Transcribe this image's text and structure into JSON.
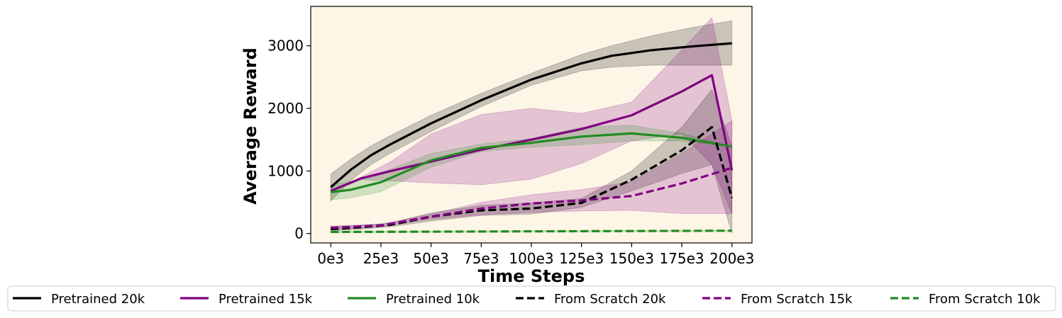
{
  "chart_data": {
    "type": "line",
    "title": "",
    "xlabel": "Time Steps",
    "ylabel": "Average Reward",
    "xlim": [
      -10000,
      210000
    ],
    "ylim": [
      -150,
      3630
    ],
    "x_ticks": [
      0,
      25000,
      50000,
      75000,
      100000,
      125000,
      150000,
      175000,
      200000
    ],
    "x_tick_labels": [
      "0e3",
      "25e3",
      "50e3",
      "75e3",
      "100e3",
      "125e3",
      "150e3",
      "175e3",
      "200e3"
    ],
    "y_ticks": [
      0,
      1000,
      2000,
      3000
    ],
    "y_tick_labels": [
      "0",
      "1000",
      "2000",
      "3000"
    ],
    "grid": false,
    "plot_background": "#fdf5e6",
    "legend_position": "bottom",
    "series": [
      {
        "name": "Pretrained 20k",
        "color": "#000000",
        "style": "solid",
        "x": [
          0,
          10000,
          20000,
          30000,
          50000,
          75000,
          100000,
          125000,
          140000,
          160000,
          180000,
          200000
        ],
        "y": [
          740,
          1020,
          1250,
          1430,
          1760,
          2130,
          2460,
          2720,
          2840,
          2930,
          2990,
          3040
        ],
        "lower": [
          520,
          850,
          1100,
          1290,
          1630,
          2030,
          2370,
          2600,
          2660,
          2690,
          2690,
          2690
        ],
        "upper": [
          950,
          1190,
          1400,
          1570,
          1890,
          2240,
          2560,
          2860,
          3000,
          3160,
          3290,
          3400
        ]
      },
      {
        "name": "Pretrained 15k",
        "color": "#800080",
        "style": "solid",
        "x": [
          0,
          15000,
          30000,
          50000,
          75000,
          100000,
          125000,
          150000,
          175000,
          190000,
          200000
        ],
        "y": [
          680,
          880,
          1000,
          1150,
          1340,
          1500,
          1670,
          1890,
          2270,
          2530,
          1010
        ],
        "lower": [
          680,
          860,
          840,
          810,
          780,
          870,
          1120,
          1480,
          1600,
          1100,
          320
        ],
        "upper": [
          680,
          900,
          1150,
          1590,
          1900,
          2000,
          1920,
          2100,
          2930,
          3450,
          1800
        ]
      },
      {
        "name": "Pretrained 10k",
        "color": "#228b22",
        "style": "solid",
        "x": [
          0,
          10000,
          25000,
          50000,
          75000,
          100000,
          125000,
          150000,
          175000,
          200000
        ],
        "y": [
          660,
          700,
          820,
          1170,
          1370,
          1450,
          1550,
          1600,
          1530,
          1390
        ],
        "lower": [
          540,
          570,
          670,
          1060,
          1310,
          1380,
          1420,
          1480,
          1480,
          1390
        ],
        "upper": [
          780,
          830,
          970,
          1280,
          1430,
          1520,
          1700,
          1730,
          1600,
          1390
        ]
      },
      {
        "name": "From Scratch 20k",
        "color": "#000000",
        "style": "dashed",
        "x": [
          0,
          15000,
          30000,
          50000,
          75000,
          100000,
          125000,
          150000,
          175000,
          190000,
          200000
        ],
        "y": [
          70,
          100,
          140,
          270,
          370,
          400,
          490,
          860,
          1330,
          1700,
          570
        ],
        "lower": [
          40,
          70,
          110,
          200,
          290,
          310,
          420,
          680,
          960,
          1100,
          0
        ],
        "upper": [
          110,
          130,
          170,
          330,
          450,
          490,
          560,
          1000,
          1700,
          2300,
          1400
        ]
      },
      {
        "name": "From Scratch 15k",
        "color": "#800080",
        "style": "dashed",
        "x": [
          0,
          25000,
          50000,
          75000,
          100000,
          125000,
          150000,
          175000,
          200000
        ],
        "y": [
          90,
          130,
          270,
          400,
          480,
          530,
          600,
          800,
          1050
        ],
        "lower": [
          60,
          110,
          230,
          300,
          340,
          360,
          370,
          320,
          320
        ],
        "upper": [
          120,
          150,
          310,
          500,
          620,
          700,
          830,
          1280,
          1800
        ]
      },
      {
        "name": "From Scratch 10k",
        "color": "#228b22",
        "style": "dashed",
        "x": [
          0,
          50000,
          100000,
          150000,
          200000
        ],
        "y": [
          25,
          30,
          35,
          40,
          45
        ],
        "lower": [
          15,
          20,
          25,
          30,
          35
        ],
        "upper": [
          35,
          40,
          45,
          50,
          55
        ]
      }
    ]
  }
}
